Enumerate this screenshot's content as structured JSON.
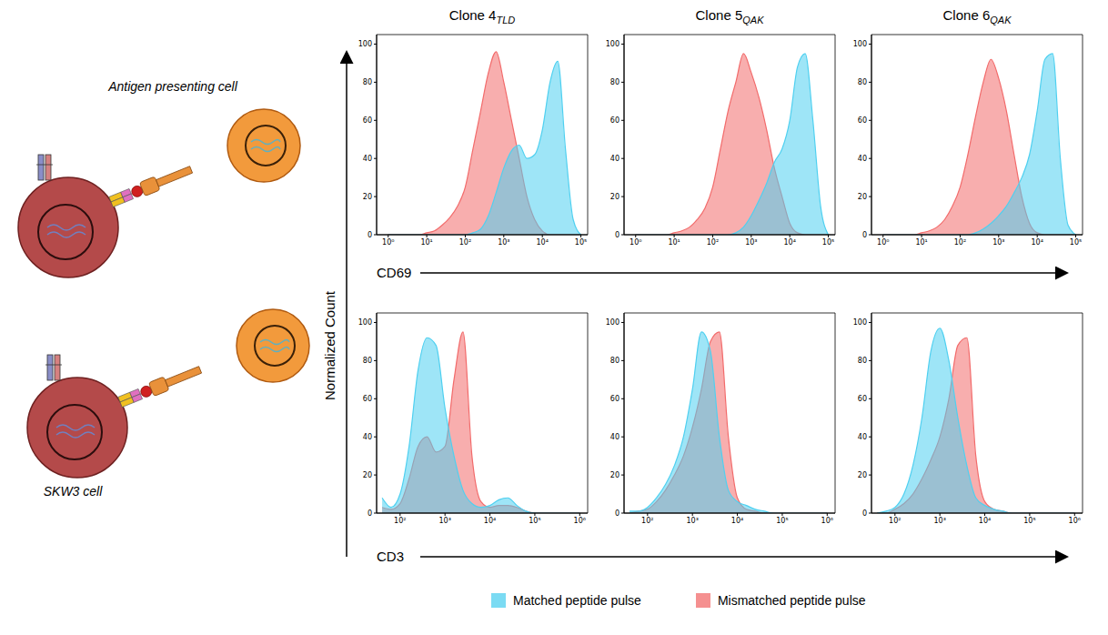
{
  "diagram": {
    "labels": [
      "Antigen presenting cell",
      "SKW3 cell"
    ]
  },
  "y_label": "Normalized Count",
  "legend": "bottom",
  "chart_data": [
    {
      "type": "area",
      "title": "Clone 4TLD",
      "x_label": "CD69",
      "log": "x",
      "xlim": [
        0.5,
        150000
      ],
      "xticks": [
        {
          "value": 1,
          "label": "10⁰"
        },
        {
          "value": 10,
          "label": "10¹"
        },
        {
          "value": 100,
          "label": "10²"
        },
        {
          "value": 1000,
          "label": "10³"
        },
        {
          "value": 10000,
          "label": "10⁴"
        },
        {
          "value": 100000,
          "label": "10⁵"
        }
      ],
      "ylim": [
        0,
        105
      ],
      "yticks": [
        0,
        20,
        40,
        60,
        80,
        100
      ],
      "x": [
        1,
        1.585,
        2.512,
        3.981,
        6.31,
        10,
        15.85,
        25.12,
        39.81,
        63.1,
        100,
        158.5,
        251.2,
        398.1,
        631,
        1000,
        1585,
        2512,
        3981,
        6310,
        10000,
        15850,
        25120,
        39810,
        63100,
        100000
      ],
      "series": [
        {
          "name": "Matched peptide pulse",
          "color": "#4fd0f0",
          "values": [
            0,
            0,
            0,
            0,
            0,
            0,
            0,
            0,
            0,
            0,
            0,
            1,
            3,
            10,
            22,
            35,
            44,
            47,
            40,
            42,
            55,
            80,
            91,
            45,
            8,
            0
          ]
        },
        {
          "name": "Mismatched peptide pulse",
          "color": "#f26b6b",
          "values": [
            0,
            0,
            0,
            0,
            0,
            1,
            2,
            5,
            9,
            15,
            25,
            45,
            65,
            85,
            96,
            80,
            60,
            40,
            20,
            8,
            2,
            0,
            0,
            0,
            0,
            0
          ]
        }
      ]
    },
    {
      "type": "area",
      "title": "Clone 5QAK",
      "log": "x",
      "xlim": [
        0.5,
        150000
      ],
      "xticks": [
        {
          "value": 1,
          "label": "10⁰"
        },
        {
          "value": 10,
          "label": "10¹"
        },
        {
          "value": 100,
          "label": "10²"
        },
        {
          "value": 1000,
          "label": "10³"
        },
        {
          "value": 10000,
          "label": "10⁴"
        },
        {
          "value": 100000,
          "label": "10⁵"
        }
      ],
      "ylim": [
        0,
        105
      ],
      "yticks": [
        0,
        20,
        40,
        60,
        80,
        100
      ],
      "x": [
        1,
        1.585,
        2.512,
        3.981,
        6.31,
        10,
        15.85,
        25.12,
        39.81,
        63.1,
        100,
        158.5,
        251.2,
        398.1,
        631,
        1000,
        1585,
        2512,
        3981,
        6310,
        10000,
        15850,
        25120,
        39810,
        63100,
        100000
      ],
      "series": [
        {
          "name": "Matched peptide pulse",
          "color": "#4fd0f0",
          "values": [
            0,
            0,
            0,
            0,
            0,
            0,
            0,
            0,
            0,
            0,
            0,
            0,
            0,
            1,
            4,
            10,
            18,
            27,
            38,
            45,
            60,
            88,
            95,
            60,
            15,
            0
          ]
        },
        {
          "name": "Mismatched peptide pulse",
          "color": "#f26b6b",
          "values": [
            0,
            0,
            0,
            0,
            0,
            1,
            2,
            4,
            8,
            14,
            25,
            45,
            65,
            80,
            95,
            85,
            72,
            55,
            35,
            20,
            6,
            1,
            0,
            0,
            0,
            0
          ]
        }
      ]
    },
    {
      "type": "area",
      "title": "Clone 6QAK",
      "log": "x",
      "xlim": [
        0.5,
        150000
      ],
      "xticks": [
        {
          "value": 1,
          "label": "10⁰"
        },
        {
          "value": 10,
          "label": "10¹"
        },
        {
          "value": 100,
          "label": "10²"
        },
        {
          "value": 1000,
          "label": "10³"
        },
        {
          "value": 10000,
          "label": "10⁴"
        },
        {
          "value": 100000,
          "label": "10⁵"
        }
      ],
      "ylim": [
        0,
        105
      ],
      "yticks": [
        0,
        20,
        40,
        60,
        80,
        100
      ],
      "x": [
        1,
        1.585,
        2.512,
        3.981,
        6.31,
        10,
        15.85,
        25.12,
        39.81,
        63.1,
        100,
        158.5,
        251.2,
        398.1,
        631,
        1000,
        1585,
        2512,
        3981,
        6310,
        10000,
        15850,
        25120,
        39810,
        63100,
        100000
      ],
      "series": [
        {
          "name": "Matched peptide pulse",
          "color": "#4fd0f0",
          "values": [
            0,
            0,
            0,
            0,
            0,
            0,
            0,
            0,
            0,
            0,
            0,
            0,
            1,
            3,
            6,
            10,
            15,
            22,
            30,
            42,
            65,
            92,
            95,
            40,
            5,
            0
          ]
        },
        {
          "name": "Mismatched peptide pulse",
          "color": "#f26b6b",
          "values": [
            0,
            0,
            0,
            0,
            0,
            1,
            2,
            4,
            8,
            15,
            25,
            42,
            62,
            80,
            92,
            82,
            65,
            42,
            20,
            6,
            1,
            0,
            0,
            0,
            0,
            0
          ]
        }
      ]
    },
    {
      "type": "area",
      "x_label": "CD3",
      "log": "x",
      "xlim": [
        30,
        1500000
      ],
      "xticks": [
        {
          "value": 100,
          "label": "10²"
        },
        {
          "value": 1000,
          "label": "10³"
        },
        {
          "value": 10000,
          "label": "10⁴"
        },
        {
          "value": 100000,
          "label": "10⁵"
        },
        {
          "value": 1000000,
          "label": "10⁶"
        }
      ],
      "ylim": [
        0,
        105
      ],
      "yticks": [
        0,
        20,
        40,
        60,
        80,
        100
      ],
      "x": [
        39.81,
        63.1,
        100,
        158.5,
        251.2,
        398.1,
        631,
        1000,
        1585,
        2512,
        3981,
        6310,
        10000,
        15850,
        25120,
        39810,
        63100,
        100000,
        158500,
        251200,
        398100,
        631000,
        1000000
      ],
      "series": [
        {
          "name": "Matched peptide pulse",
          "color": "#4fd0f0",
          "values": [
            8,
            3,
            10,
            35,
            75,
            92,
            88,
            55,
            30,
            12,
            5,
            3,
            4,
            7,
            8,
            4,
            1,
            0,
            0,
            0,
            0,
            0,
            0
          ]
        },
        {
          "name": "Mismatched peptide pulse",
          "color": "#f26b6b",
          "values": [
            3,
            2,
            5,
            18,
            35,
            40,
            32,
            35,
            70,
            95,
            30,
            6,
            3,
            4,
            4,
            3,
            1,
            0,
            0,
            0,
            0,
            0,
            0
          ]
        }
      ]
    },
    {
      "type": "area",
      "log": "x",
      "xlim": [
        30,
        1500000
      ],
      "xticks": [
        {
          "value": 100,
          "label": "10²"
        },
        {
          "value": 1000,
          "label": "10³"
        },
        {
          "value": 10000,
          "label": "10⁴"
        },
        {
          "value": 100000,
          "label": "10⁵"
        },
        {
          "value": 1000000,
          "label": "10⁶"
        }
      ],
      "ylim": [
        0,
        105
      ],
      "yticks": [
        0,
        20,
        40,
        60,
        80,
        100
      ],
      "x": [
        39.81,
        63.1,
        100,
        158.5,
        251.2,
        398.1,
        631,
        1000,
        1585,
        2512,
        3981,
        6310,
        10000,
        15850,
        25120,
        39810,
        63100,
        100000,
        158500,
        251200,
        398100,
        631000,
        1000000
      ],
      "series": [
        {
          "name": "Matched peptide pulse",
          "color": "#4fd0f0",
          "values": [
            1,
            1,
            3,
            8,
            15,
            25,
            40,
            65,
            95,
            85,
            40,
            12,
            6,
            4,
            2,
            1,
            0,
            0,
            0,
            0,
            0,
            0,
            0
          ]
        },
        {
          "name": "Mismatched peptide pulse",
          "color": "#f26b6b",
          "values": [
            0,
            1,
            2,
            6,
            12,
            20,
            30,
            45,
            65,
            90,
            95,
            40,
            8,
            2,
            1,
            0,
            0,
            0,
            0,
            0,
            0,
            0,
            0
          ]
        }
      ]
    },
    {
      "type": "area",
      "log": "x",
      "xlim": [
        30,
        1500000
      ],
      "xticks": [
        {
          "value": 100,
          "label": "10²"
        },
        {
          "value": 1000,
          "label": "10³"
        },
        {
          "value": 10000,
          "label": "10⁴"
        },
        {
          "value": 100000,
          "label": "10⁵"
        },
        {
          "value": 1000000,
          "label": "10⁶"
        }
      ],
      "ylim": [
        0,
        105
      ],
      "yticks": [
        0,
        20,
        40,
        60,
        80,
        100
      ],
      "x": [
        39.81,
        63.1,
        100,
        158.5,
        251.2,
        398.1,
        631,
        1000,
        1585,
        2512,
        3981,
        6310,
        10000,
        15850,
        25120,
        39810,
        63100,
        100000,
        158500,
        251200,
        398100,
        631000,
        1000000
      ],
      "series": [
        {
          "name": "Matched peptide pulse",
          "color": "#4fd0f0",
          "values": [
            0,
            1,
            3,
            10,
            25,
            50,
            85,
            97,
            80,
            50,
            25,
            8,
            4,
            2,
            1,
            0,
            0,
            0,
            0,
            0,
            0,
            0,
            0
          ]
        },
        {
          "name": "Mismatched peptide pulse",
          "color": "#f26b6b",
          "values": [
            0,
            0,
            2,
            5,
            10,
            18,
            28,
            40,
            60,
            88,
            92,
            30,
            6,
            2,
            1,
            0,
            0,
            0,
            0,
            0,
            0,
            0,
            0
          ]
        }
      ]
    }
  ]
}
